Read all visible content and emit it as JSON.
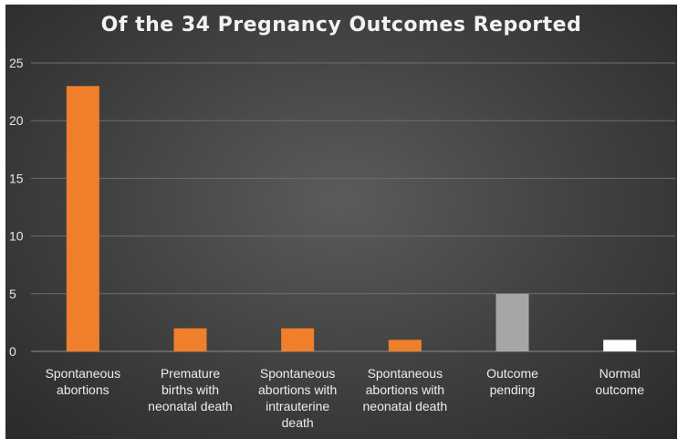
{
  "chart_data": {
    "type": "bar",
    "title": "Of the 34 Pregnancy Outcomes Reported",
    "categories": [
      [
        "Spontaneous",
        "abortions"
      ],
      [
        "Premature",
        "births with",
        "neonatal death"
      ],
      [
        "Spontaneous",
        "abortions with",
        "intrauterine",
        "death"
      ],
      [
        "Spontaneous",
        "abortions with",
        "neonatal death"
      ],
      [
        "Outcome",
        "pending"
      ],
      [
        "Normal",
        "outcome"
      ]
    ],
    "values": [
      23,
      2,
      2,
      1,
      5,
      1
    ],
    "bar_colors": [
      "#f07f2b",
      "#f07f2b",
      "#f07f2b",
      "#f07f2b",
      "#a6a6a6",
      "#ffffff"
    ],
    "ylim": [
      0,
      25
    ],
    "yticks": [
      0,
      5,
      10,
      15,
      20,
      25
    ],
    "grid": true,
    "legend": "none"
  }
}
